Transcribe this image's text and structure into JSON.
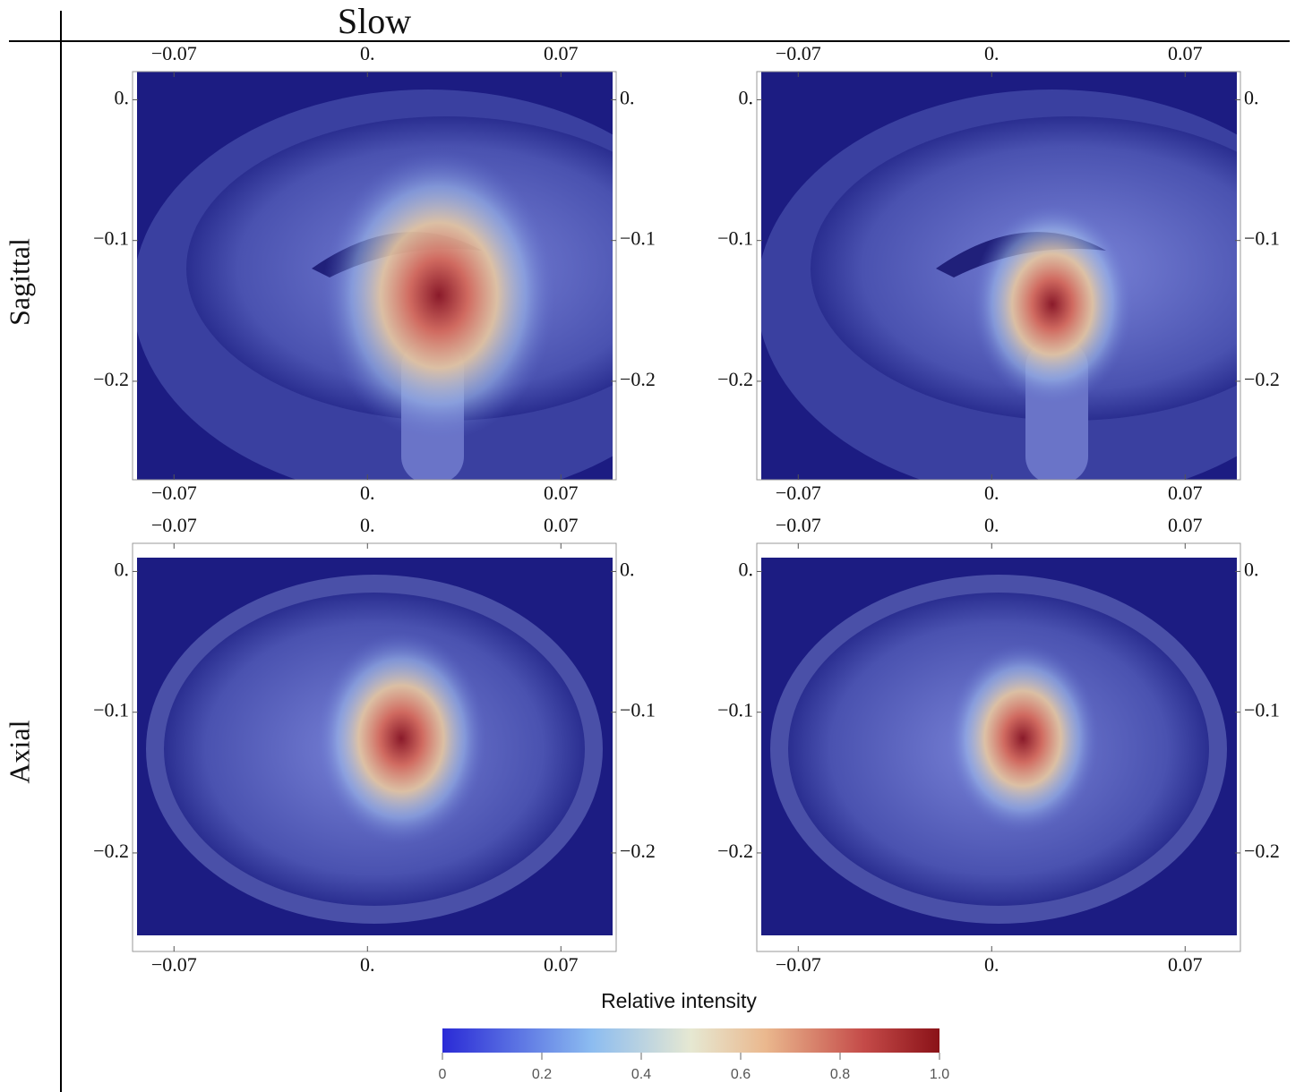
{
  "header": {
    "title": "Slow"
  },
  "rows": [
    {
      "label": "Sagittal"
    },
    {
      "label": "Axial"
    }
  ],
  "axes": {
    "xlim": [
      -0.085,
      0.09
    ],
    "ylim": [
      -0.27,
      0.02
    ],
    "xticks": [
      {
        "value": -0.07,
        "label": "−0.07"
      },
      {
        "value": 0,
        "label": "0."
      },
      {
        "value": 0.07,
        "label": "0.07"
      }
    ],
    "yticks": [
      {
        "value": 0,
        "label": "0."
      },
      {
        "value": -0.1,
        "label": "−0.1"
      },
      {
        "value": -0.2,
        "label": "−0.2"
      }
    ]
  },
  "colorbar": {
    "title": "Relative intensity",
    "lim": [
      0,
      1
    ],
    "ticks": [
      0,
      0.2,
      0.4,
      0.6,
      0.8,
      {
        "value": 1,
        "label": "1.0"
      }
    ]
  }
}
